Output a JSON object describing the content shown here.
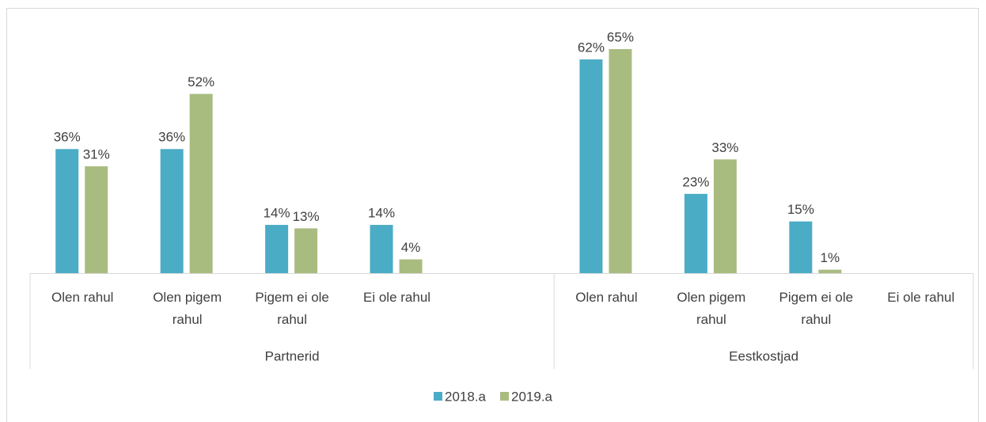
{
  "chart_data": {
    "type": "bar",
    "categories": [
      "Olen rahul",
      "Olen pigem rahul",
      "Pigem ei ole rahul",
      "Ei ole rahul",
      null,
      "Olen rahul",
      "Olen pigem rahul",
      "Pigem ei ole rahul",
      "Ei ole rahul"
    ],
    "groups": [
      {
        "label": "Partnerid",
        "count": 5
      },
      {
        "label": "Eestkostjad",
        "count": 4
      }
    ],
    "series": [
      {
        "name": "2018.a",
        "color": "#4bacc6",
        "values": [
          36,
          36,
          14,
          14,
          null,
          62,
          23,
          15,
          null
        ],
        "value_labels": [
          "36%",
          "36%",
          "14%",
          "14%",
          null,
          "62%",
          "23%",
          "15%",
          null
        ]
      },
      {
        "name": "2019.a",
        "color": "#a9bc80",
        "values": [
          31,
          52,
          13,
          4,
          null,
          65,
          33,
          1,
          null
        ],
        "value_labels": [
          "31%",
          "52%",
          "13%",
          "4%",
          null,
          "65%",
          "33%",
          "1%",
          null
        ]
      }
    ],
    "legend": "bottom"
  }
}
